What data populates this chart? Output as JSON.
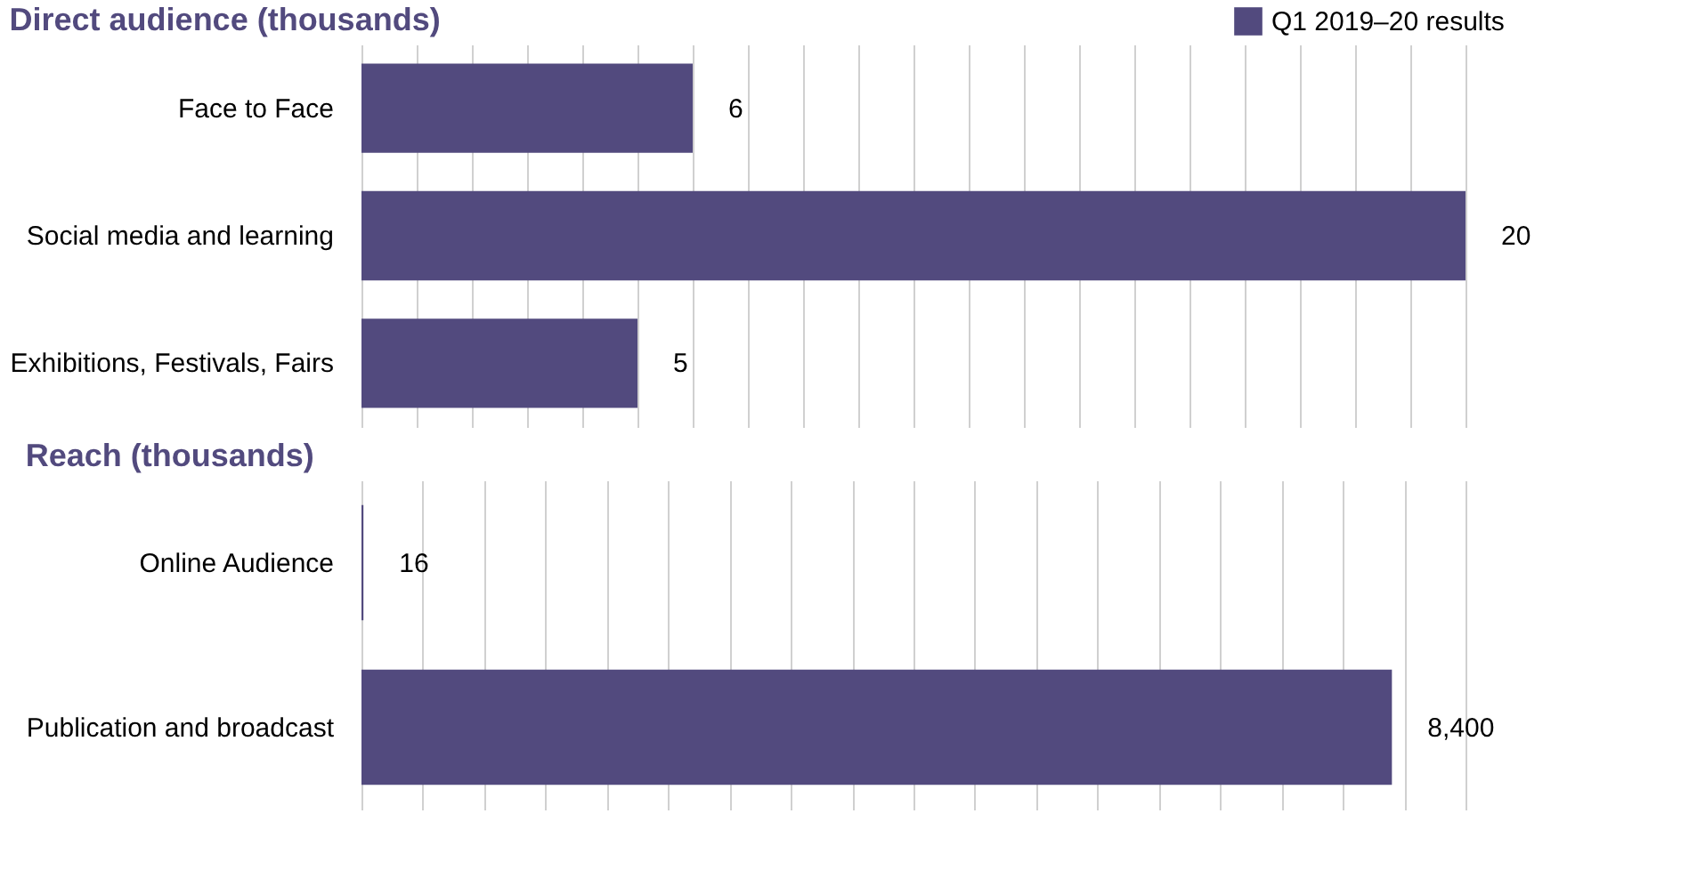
{
  "chart_data": [
    {
      "type": "bar",
      "orientation": "horizontal",
      "title": "Direct audience (thousands)",
      "categories": [
        "Face to Face",
        "Social media and learning",
        "Exhibitions, Festivals, Fairs"
      ],
      "series": [
        {
          "name": "Q1 2019–20 results",
          "color": "#524a7e",
          "values": [
            6,
            20,
            5
          ]
        }
      ],
      "data_labels": true,
      "grid": "x",
      "legend": "top right",
      "tick_labels": "y"
    },
    {
      "type": "bar",
      "orientation": "horizontal",
      "title": "Reach (thousands)",
      "categories": [
        "Online Audience",
        "Publication and broadcast"
      ],
      "series": [
        {
          "color": "#524a7e",
          "values": [
            16,
            8400
          ],
          "value_labels": [
            "16",
            "8,400"
          ]
        }
      ],
      "grid": "x",
      "tick_labels": "y"
    }
  ]
}
